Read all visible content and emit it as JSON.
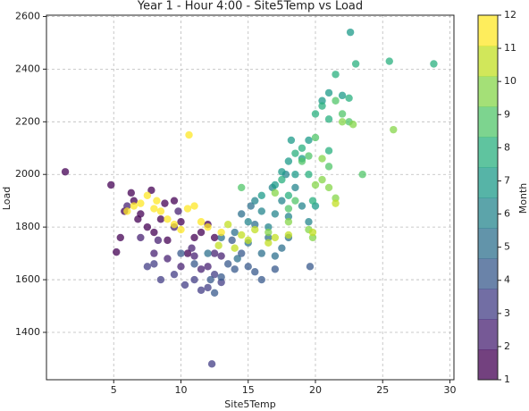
{
  "chart_data": {
    "type": "scatter",
    "title": "Year 1 - Hour 4:00 - Site5Temp vs Load",
    "x_label": "Site5Temp",
    "y_label": "Load",
    "xlim": [
      0,
      30.3
    ],
    "ylim": [
      1220,
      2605
    ],
    "xticks": [
      5,
      10,
      15,
      20,
      25,
      30
    ],
    "yticks": [
      1400,
      1600,
      1800,
      2000,
      2200,
      2400,
      2600
    ],
    "grid": true,
    "x": [
      1.4,
      4.8,
      5.2,
      5.5,
      5.8,
      6.3,
      6.5,
      7,
      7.5,
      8,
      8.5,
      9,
      9.5,
      10,
      10.5,
      11,
      11.5,
      12,
      12.5,
      6.8,
      8.8,
      7.8,
      6,
      7,
      8,
      9,
      9.5,
      10,
      10.8,
      11,
      11.5,
      12,
      12.5,
      13,
      8.3,
      9.8,
      7.5,
      8.5,
      9.5,
      10.3,
      11,
      11.5,
      12,
      12.5,
      13,
      12.3,
      8,
      10,
      11,
      12.5,
      13,
      13.5,
      14,
      14.5,
      15,
      15.5,
      16,
      12.2,
      17,
      19.6,
      13.8,
      12,
      13,
      14,
      14.5,
      15,
      15.5,
      16,
      16.5,
      17,
      17.5,
      18,
      15.2,
      14.2,
      15,
      15.5,
      16,
      16.5,
      17,
      17.5,
      18,
      18.5,
      19,
      16.8,
      17.8,
      19.5,
      16,
      17,
      17.5,
      18,
      18.5,
      19,
      19.5,
      20,
      20.5,
      21,
      22,
      22.6,
      18.2,
      17.5,
      18,
      18.5,
      19,
      19.5,
      20,
      20.5,
      21,
      21.5,
      22.5,
      23,
      25.5,
      28.8,
      21,
      19.8,
      18.5,
      19,
      19.5,
      20,
      21,
      21.5,
      22,
      22.5,
      23.5,
      14.5,
      18,
      17,
      18,
      19.5,
      20,
      20.5,
      21,
      21.5,
      22,
      22.8,
      25.8,
      20.5,
      19.8,
      16.5,
      14,
      14.5,
      15,
      15.5,
      16.5,
      17,
      13.5,
      18,
      12.8,
      19.8,
      21.5,
      6,
      6.5,
      7,
      7.5,
      8,
      8.5,
      9,
      9.5,
      10,
      10.5,
      11,
      11.5,
      12,
      10.6,
      8.2,
      13
    ],
    "values": [
      2010,
      1960,
      1705,
      1760,
      1860,
      1930,
      1900,
      1850,
      1800,
      1780,
      1830,
      1750,
      1900,
      1820,
      1700,
      1760,
      1780,
      1810,
      1760,
      1830,
      1890,
      1940,
      1880,
      1760,
      1700,
      1680,
      1800,
      1650,
      1720,
      1690,
      1640,
      1650,
      1700,
      1690,
      1750,
      1860,
      1650,
      1600,
      1620,
      1580,
      1600,
      1560,
      1570,
      1620,
      1590,
      1280,
      1660,
      1700,
      1660,
      1550,
      1610,
      1660,
      1640,
      1700,
      1650,
      1630,
      1600,
      1600,
      1640,
      1650,
      1750,
      1700,
      1760,
      1780,
      1850,
      1740,
      1810,
      1700,
      1760,
      1690,
      1720,
      1760,
      1880,
      1680,
      1820,
      1900,
      1860,
      1800,
      1850,
      1900,
      1840,
      1950,
      1880,
      1950,
      2000,
      1820,
      1920,
      1960,
      2010,
      2050,
      2000,
      2060,
      2130,
      1880,
      2280,
      2310,
      2300,
      2540,
      2130,
      1980,
      1920,
      2080,
      2100,
      2000,
      2230,
      2260,
      2210,
      2380,
      2290,
      2420,
      2430,
      2420,
      2090,
      1900,
      1900,
      2050,
      2070,
      2140,
      2030,
      2280,
      2230,
      2200,
      2000,
      1950,
      1870,
      1930,
      1820,
      1790,
      1960,
      1980,
      1950,
      1910,
      2200,
      2190,
      2170,
      2060,
      1760,
      1780,
      1720,
      1770,
      1750,
      1790,
      1740,
      1760,
      1810,
      1770,
      1730,
      1780,
      1890,
      1860,
      1880,
      1890,
      1920,
      1870,
      1860,
      1830,
      1810,
      1790,
      1870,
      1880,
      1820,
      1800,
      2150,
      1900,
      1780
    ],
    "c": [
      1,
      1,
      1,
      1,
      1,
      1,
      1,
      1,
      1,
      1,
      1,
      1,
      1,
      1,
      1,
      1,
      1,
      1,
      1,
      1,
      1,
      1,
      2,
      2,
      2,
      2,
      2,
      2,
      2,
      2,
      2,
      2,
      2,
      2,
      2,
      2,
      3,
      3,
      3,
      3,
      3,
      3,
      3,
      3,
      3,
      3,
      3,
      4,
      4,
      4,
      4,
      4,
      4,
      4,
      4,
      4,
      4,
      4,
      4,
      4,
      4,
      5,
      5,
      5,
      5,
      5,
      5,
      5,
      5,
      5,
      5,
      5,
      5,
      5,
      6,
      6,
      6,
      6,
      6,
      6,
      6,
      6,
      6,
      6,
      6,
      6,
      7,
      7,
      7,
      7,
      7,
      7,
      7,
      7,
      7,
      7,
      7,
      7,
      7,
      8,
      8,
      8,
      8,
      8,
      8,
      8,
      8,
      8,
      8,
      8,
      8,
      8,
      8,
      8,
      9,
      9,
      9,
      9,
      9,
      9,
      9,
      9,
      9,
      9,
      9,
      10,
      10,
      10,
      10,
      10,
      10,
      10,
      10,
      10,
      10,
      10,
      10,
      10,
      11,
      11,
      11,
      11,
      11,
      11,
      11,
      11,
      11,
      11,
      11,
      12,
      12,
      12,
      12,
      12,
      12,
      12,
      12,
      12,
      12,
      12,
      12,
      12,
      12,
      12,
      12
    ],
    "colorbar_label": "Month",
    "clim": [
      1,
      12
    ],
    "cticks": [
      1,
      2,
      3,
      4,
      5,
      6,
      7,
      8,
      9,
      10,
      11,
      12
    ],
    "colormap": [
      "#440154",
      "#482173",
      "#433e85",
      "#38598c",
      "#2d708e",
      "#25858e",
      "#1e9b8a",
      "#2ab07f",
      "#52c569",
      "#86d549",
      "#c2df23",
      "#fde725"
    ]
  }
}
